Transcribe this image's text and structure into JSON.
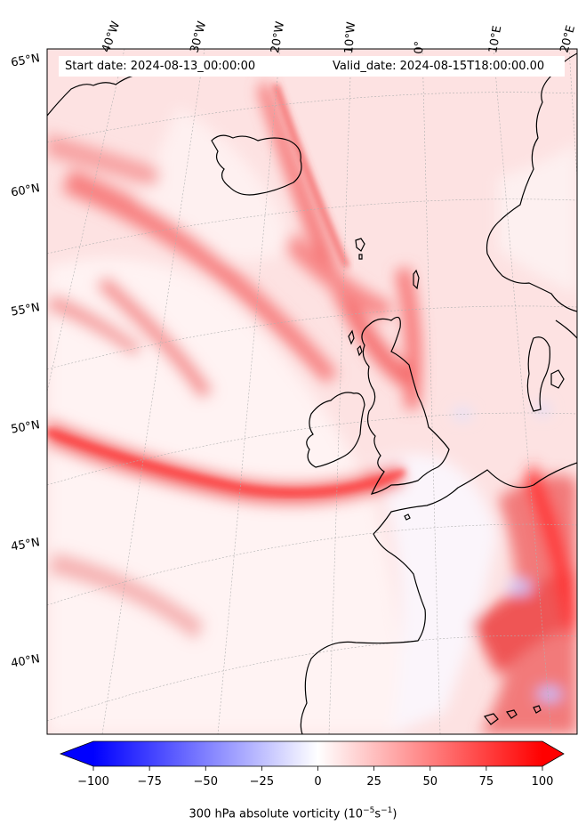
{
  "map": {
    "start_date": "Start date: 2024-08-13_00:00:00",
    "valid_date": "Valid_date: 2024-08-15T18:00:00.00",
    "lon_labels": [
      "40°W",
      "30°W",
      "20°W",
      "10°W",
      "0°",
      "10°E",
      "20°E"
    ],
    "lat_labels": [
      "65°N",
      "60°N",
      "55°N",
      "50°N",
      "45°N",
      "40°N"
    ]
  },
  "colorbar": {
    "title_main": "300 hPa absolute vorticity (10",
    "title_exp1": "−5",
    "title_mid": "s",
    "title_exp2": "−1",
    "title_end": ")",
    "ticks": [
      "−100",
      "−75",
      "−50",
      "−25",
      "0",
      "25",
      "50",
      "75",
      "100"
    ],
    "range": [
      -100,
      100
    ],
    "colors": {
      "negative": "#0000ff",
      "zero": "#ffffff",
      "positive": "#ff0000"
    }
  }
}
